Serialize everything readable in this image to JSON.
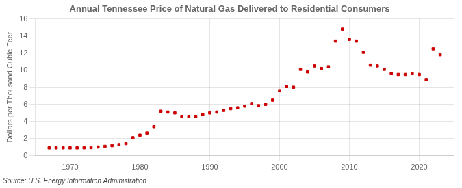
{
  "chart_data": {
    "type": "scatter",
    "title": "Annual Tennessee Price of Natural Gas Delivered to Residential Consumers",
    "ylabel": "Dollars per Thousand Cubic Feet",
    "annotation": "Source: U.S. Energy Information Administration",
    "color": "#cc0000",
    "marker": "square",
    "x": [
      1967,
      1968,
      1969,
      1970,
      1971,
      1972,
      1973,
      1974,
      1975,
      1976,
      1977,
      1978,
      1979,
      1980,
      1981,
      1982,
      1983,
      1984,
      1985,
      1986,
      1987,
      1988,
      1989,
      1990,
      1991,
      1992,
      1993,
      1994,
      1995,
      1996,
      1997,
      1998,
      1999,
      2000,
      2001,
      2002,
      2003,
      2004,
      2005,
      2006,
      2007,
      2008,
      2009,
      2010,
      2011,
      2012,
      2013,
      2014,
      2015,
      2016,
      2017,
      2018,
      2019,
      2020,
      2021,
      2022,
      2023
    ],
    "values": [
      0.92,
      0.92,
      0.93,
      0.92,
      0.92,
      0.93,
      0.95,
      1.02,
      1.1,
      1.18,
      1.3,
      1.42,
      2.1,
      2.4,
      2.65,
      3.4,
      5.2,
      5.1,
      5.0,
      4.6,
      4.6,
      4.6,
      4.8,
      5.0,
      5.1,
      5.3,
      5.5,
      5.6,
      5.8,
      6.1,
      5.85,
      6.0,
      6.5,
      7.6,
      8.1,
      8.0,
      10.1,
      9.8,
      10.5,
      10.2,
      10.4,
      13.4,
      14.8,
      13.6,
      13.4,
      12.1,
      10.6,
      10.5,
      10.1,
      9.6,
      9.5,
      9.5,
      9.6,
      9.5,
      8.9,
      12.5,
      11.8
    ],
    "xlim": [
      1965,
      2025
    ],
    "ylim": [
      0,
      16
    ],
    "xticks": [
      1970,
      1980,
      1990,
      2000,
      2010,
      2020
    ],
    "yticks": [
      0,
      2,
      4,
      6,
      8,
      10,
      12,
      14,
      16
    ],
    "grid": true
  }
}
